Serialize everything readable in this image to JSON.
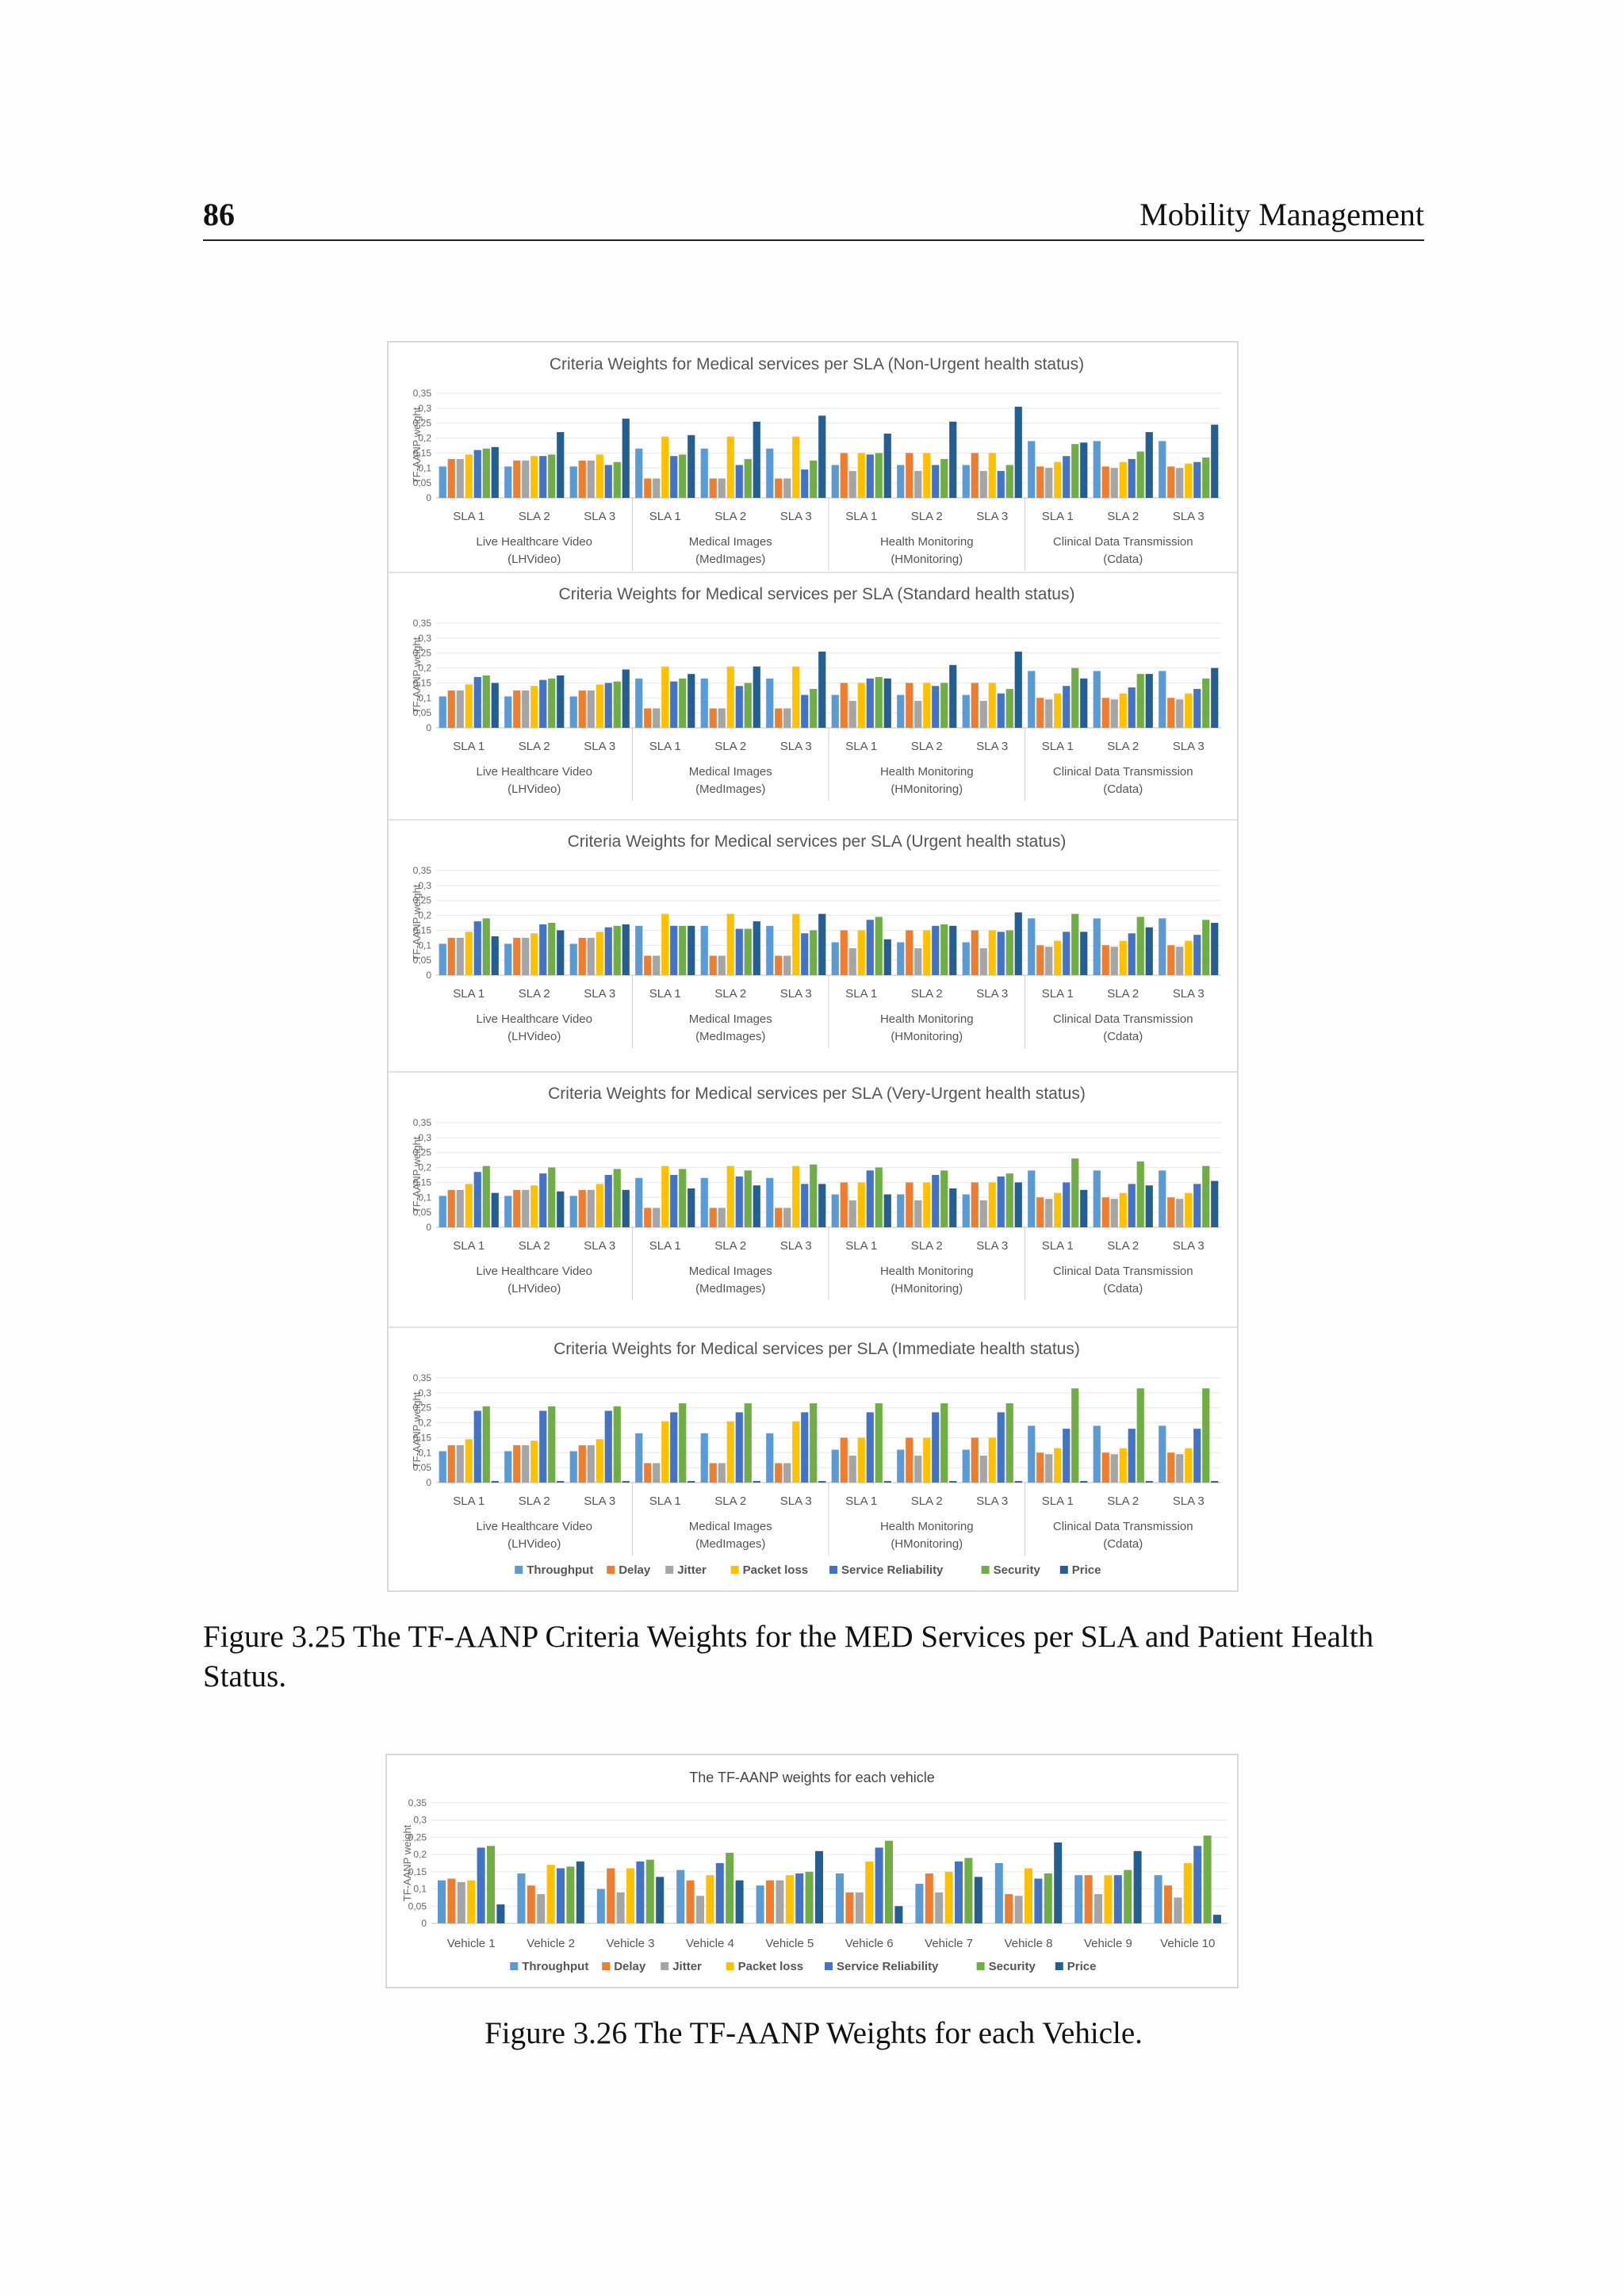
{
  "header": {
    "page_number": "86",
    "running_title": "Mobility Management"
  },
  "series_legend": [
    {
      "name": "Throughput",
      "color": "#5B9BD5"
    },
    {
      "name": "Delay",
      "color": "#ED7D31"
    },
    {
      "name": "Jitter",
      "color": "#A5A5A5"
    },
    {
      "name": "Packet loss",
      "color": "#FFC000"
    },
    {
      "name": "Service Reliability",
      "color": "#4472C4"
    },
    {
      "name": "Security",
      "color": "#70AD47"
    },
    {
      "name": "Price",
      "color": "#255E91"
    }
  ],
  "figure1": {
    "caption": "Figure 3.25 The TF-AANP Criteria Weights for the MED Services per SLA and Patient Health Status.",
    "chart_data": [
      {
        "type": "bar",
        "title": "Criteria Weights for Medical services per SLA (Non-Urgent health status)",
        "ylabel": "TF-AANP  weight",
        "ylim": [
          0,
          0.35
        ],
        "yticks": [
          "0",
          "0,05",
          "0,1",
          "0,15",
          "0,2",
          "0,25",
          "0,3",
          "0,35"
        ],
        "groups": [
          {
            "label": "Live Healthcare Video",
            "sublabel": "(LHVideo)",
            "categories": [
              "SLA 1",
              "SLA 2",
              "SLA 3"
            ]
          },
          {
            "label": "Medical Images",
            "sublabel": "(MedImages)",
            "categories": [
              "SLA 1",
              "SLA 2",
              "SLA 3"
            ]
          },
          {
            "label": "Health Monitoring",
            "sublabel": "(HMonitoring)",
            "categories": [
              "SLA 1",
              "SLA 2",
              "SLA 3"
            ]
          },
          {
            "label": "Clinical Data Transmission",
            "sublabel": "(Cdata)",
            "categories": [
              "SLA 1",
              "SLA 2",
              "SLA 3"
            ]
          }
        ],
        "values": [
          [
            0.105,
            0.13,
            0.13,
            0.145,
            0.16,
            0.165,
            0.17
          ],
          [
            0.105,
            0.125,
            0.125,
            0.14,
            0.14,
            0.145,
            0.22
          ],
          [
            0.105,
            0.125,
            0.125,
            0.145,
            0.11,
            0.12,
            0.265
          ],
          [
            0.165,
            0.065,
            0.065,
            0.205,
            0.14,
            0.145,
            0.21
          ],
          [
            0.165,
            0.065,
            0.065,
            0.205,
            0.11,
            0.13,
            0.255
          ],
          [
            0.165,
            0.065,
            0.065,
            0.205,
            0.095,
            0.125,
            0.275
          ],
          [
            0.11,
            0.15,
            0.09,
            0.15,
            0.145,
            0.15,
            0.215
          ],
          [
            0.11,
            0.15,
            0.09,
            0.15,
            0.11,
            0.13,
            0.255
          ],
          [
            0.11,
            0.15,
            0.09,
            0.15,
            0.09,
            0.11,
            0.305
          ],
          [
            0.19,
            0.105,
            0.1,
            0.12,
            0.14,
            0.18,
            0.185
          ],
          [
            0.19,
            0.105,
            0.1,
            0.12,
            0.13,
            0.155,
            0.22
          ],
          [
            0.19,
            0.105,
            0.1,
            0.115,
            0.12,
            0.135,
            0.245
          ]
        ]
      },
      {
        "type": "bar",
        "title": "Criteria Weights for Medical services per SLA (Standard health status)",
        "ylabel": "TF-AANP  weight",
        "ylim": [
          0,
          0.35
        ],
        "yticks": [
          "0",
          "0,05",
          "0,1",
          "0,15",
          "0,2",
          "0,25",
          "0,3",
          "0,35"
        ],
        "groups": [
          {
            "label": "Live Healthcare Video",
            "sublabel": "(LHVideo)",
            "categories": [
              "SLA 1",
              "SLA 2",
              "SLA 3"
            ]
          },
          {
            "label": "Medical Images",
            "sublabel": "(MedImages)",
            "categories": [
              "SLA 1",
              "SLA 2",
              "SLA 3"
            ]
          },
          {
            "label": "Health Monitoring",
            "sublabel": "(HMonitoring)",
            "categories": [
              "SLA 1",
              "SLA 2",
              "SLA 3"
            ]
          },
          {
            "label": "Clinical Data Transmission",
            "sublabel": "(Cdata)",
            "categories": [
              "SLA 1",
              "SLA 2",
              "SLA 3"
            ]
          }
        ],
        "values": [
          [
            0.105,
            0.125,
            0.125,
            0.145,
            0.17,
            0.175,
            0.15
          ],
          [
            0.105,
            0.125,
            0.125,
            0.14,
            0.16,
            0.165,
            0.175
          ],
          [
            0.105,
            0.125,
            0.125,
            0.145,
            0.15,
            0.155,
            0.195
          ],
          [
            0.165,
            0.065,
            0.065,
            0.205,
            0.155,
            0.165,
            0.18
          ],
          [
            0.165,
            0.065,
            0.065,
            0.205,
            0.14,
            0.15,
            0.205
          ],
          [
            0.165,
            0.065,
            0.065,
            0.205,
            0.11,
            0.13,
            0.255
          ],
          [
            0.11,
            0.15,
            0.09,
            0.15,
            0.165,
            0.17,
            0.165
          ],
          [
            0.11,
            0.15,
            0.09,
            0.15,
            0.14,
            0.15,
            0.21
          ],
          [
            0.11,
            0.15,
            0.09,
            0.15,
            0.115,
            0.13,
            0.255
          ],
          [
            0.19,
            0.1,
            0.095,
            0.115,
            0.14,
            0.2,
            0.165
          ],
          [
            0.19,
            0.1,
            0.095,
            0.115,
            0.135,
            0.18,
            0.18
          ],
          [
            0.19,
            0.1,
            0.095,
            0.115,
            0.13,
            0.165,
            0.2
          ]
        ]
      },
      {
        "type": "bar",
        "title": "Criteria Weights for Medical services per SLA (Urgent health status)",
        "ylabel": "TF-AANP  weight",
        "ylim": [
          0,
          0.35
        ],
        "yticks": [
          "0",
          "0,05",
          "0,1",
          "0,15",
          "0,2",
          "0,25",
          "0,3",
          "0,35"
        ],
        "groups": [
          {
            "label": "Live Healthcare Video",
            "sublabel": "(LHVideo)",
            "categories": [
              "SLA 1",
              "SLA 2",
              "SLA 3"
            ]
          },
          {
            "label": "Medical Images",
            "sublabel": "(MedImages)",
            "categories": [
              "SLA 1",
              "SLA 2",
              "SLA 3"
            ]
          },
          {
            "label": "Health Monitoring",
            "sublabel": "(HMonitoring)",
            "categories": [
              "SLA 1",
              "SLA 2",
              "SLA 3"
            ]
          },
          {
            "label": "Clinical Data Transmission",
            "sublabel": "(Cdata)",
            "categories": [
              "SLA 1",
              "SLA 2",
              "SLA 3"
            ]
          }
        ],
        "values": [
          [
            0.105,
            0.125,
            0.125,
            0.145,
            0.18,
            0.19,
            0.13
          ],
          [
            0.105,
            0.125,
            0.125,
            0.14,
            0.17,
            0.175,
            0.15
          ],
          [
            0.105,
            0.125,
            0.125,
            0.145,
            0.16,
            0.165,
            0.17
          ],
          [
            0.165,
            0.065,
            0.065,
            0.205,
            0.165,
            0.165,
            0.165
          ],
          [
            0.165,
            0.065,
            0.065,
            0.205,
            0.155,
            0.155,
            0.18
          ],
          [
            0.165,
            0.065,
            0.065,
            0.205,
            0.14,
            0.15,
            0.205
          ],
          [
            0.11,
            0.15,
            0.09,
            0.15,
            0.185,
            0.195,
            0.12
          ],
          [
            0.11,
            0.15,
            0.09,
            0.15,
            0.165,
            0.17,
            0.165
          ],
          [
            0.11,
            0.15,
            0.09,
            0.15,
            0.145,
            0.15,
            0.21
          ],
          [
            0.19,
            0.1,
            0.095,
            0.115,
            0.145,
            0.205,
            0.145
          ],
          [
            0.19,
            0.1,
            0.095,
            0.115,
            0.14,
            0.195,
            0.16
          ],
          [
            0.19,
            0.1,
            0.095,
            0.115,
            0.135,
            0.185,
            0.175
          ]
        ]
      },
      {
        "type": "bar",
        "title": "Criteria Weights for Medical services per SLA (Very-Urgent health status)",
        "ylabel": "TF-AANP  weight",
        "ylim": [
          0,
          0.35
        ],
        "yticks": [
          "0",
          "0,05",
          "0,1",
          "0,15",
          "0,2",
          "0,25",
          "0,3",
          "0,35"
        ],
        "groups": [
          {
            "label": "Live Healthcare Video",
            "sublabel": "(LHVideo)",
            "categories": [
              "SLA 1",
              "SLA 2",
              "SLA 3"
            ]
          },
          {
            "label": "Medical Images",
            "sublabel": "(MedImages)",
            "categories": [
              "SLA 1",
              "SLA 2",
              "SLA 3"
            ]
          },
          {
            "label": "Health Monitoring",
            "sublabel": "(HMonitoring)",
            "categories": [
              "SLA 1",
              "SLA 2",
              "SLA 3"
            ]
          },
          {
            "label": "Clinical Data Transmission",
            "sublabel": "(Cdata)",
            "categories": [
              "SLA 1",
              "SLA 2",
              "SLA 3"
            ]
          }
        ],
        "values": [
          [
            0.105,
            0.125,
            0.125,
            0.145,
            0.185,
            0.205,
            0.115
          ],
          [
            0.105,
            0.125,
            0.125,
            0.14,
            0.18,
            0.2,
            0.12
          ],
          [
            0.105,
            0.125,
            0.125,
            0.145,
            0.175,
            0.195,
            0.125
          ],
          [
            0.165,
            0.065,
            0.065,
            0.205,
            0.175,
            0.195,
            0.13
          ],
          [
            0.165,
            0.065,
            0.065,
            0.205,
            0.17,
            0.19,
            0.14
          ],
          [
            0.165,
            0.065,
            0.065,
            0.205,
            0.145,
            0.21,
            0.145
          ],
          [
            0.11,
            0.15,
            0.09,
            0.15,
            0.19,
            0.2,
            0.11
          ],
          [
            0.11,
            0.15,
            0.09,
            0.15,
            0.175,
            0.19,
            0.13
          ],
          [
            0.11,
            0.15,
            0.09,
            0.15,
            0.17,
            0.18,
            0.15
          ],
          [
            0.19,
            0.1,
            0.095,
            0.115,
            0.15,
            0.23,
            0.125
          ],
          [
            0.19,
            0.1,
            0.095,
            0.115,
            0.145,
            0.22,
            0.14
          ],
          [
            0.19,
            0.1,
            0.095,
            0.115,
            0.145,
            0.205,
            0.155
          ]
        ]
      },
      {
        "type": "bar",
        "title": "Criteria Weights for Medical services per SLA (Immediate health status)",
        "ylabel": "TF-AANP  weight",
        "ylim": [
          0,
          0.35
        ],
        "yticks": [
          "0",
          "0,05",
          "0,1",
          "0,15",
          "0,2",
          "0,25",
          "0,3",
          "0,35"
        ],
        "groups": [
          {
            "label": "Live Healthcare Video",
            "sublabel": "(LHVideo)",
            "categories": [
              "SLA 1",
              "SLA 2",
              "SLA 3"
            ]
          },
          {
            "label": "Medical Images",
            "sublabel": "(MedImages)",
            "categories": [
              "SLA 1",
              "SLA 2",
              "SLA 3"
            ]
          },
          {
            "label": "Health Monitoring",
            "sublabel": "(HMonitoring)",
            "categories": [
              "SLA 1",
              "SLA 2",
              "SLA 3"
            ]
          },
          {
            "label": "Clinical Data Transmission",
            "sublabel": "(Cdata)",
            "categories": [
              "SLA 1",
              "SLA 2",
              "SLA 3"
            ]
          }
        ],
        "values": [
          [
            0.105,
            0.125,
            0.125,
            0.145,
            0.24,
            0.255,
            0.005
          ],
          [
            0.105,
            0.125,
            0.125,
            0.14,
            0.24,
            0.255,
            0.005
          ],
          [
            0.105,
            0.125,
            0.125,
            0.145,
            0.24,
            0.255,
            0.005
          ],
          [
            0.165,
            0.065,
            0.065,
            0.205,
            0.235,
            0.265,
            0.005
          ],
          [
            0.165,
            0.065,
            0.065,
            0.205,
            0.235,
            0.265,
            0.005
          ],
          [
            0.165,
            0.065,
            0.065,
            0.205,
            0.235,
            0.265,
            0.005
          ],
          [
            0.11,
            0.15,
            0.09,
            0.15,
            0.235,
            0.265,
            0.005
          ],
          [
            0.11,
            0.15,
            0.09,
            0.15,
            0.235,
            0.265,
            0.005
          ],
          [
            0.11,
            0.15,
            0.09,
            0.15,
            0.235,
            0.265,
            0.005
          ],
          [
            0.19,
            0.1,
            0.095,
            0.115,
            0.18,
            0.315,
            0.005
          ],
          [
            0.19,
            0.1,
            0.095,
            0.115,
            0.18,
            0.315,
            0.005
          ],
          [
            0.19,
            0.1,
            0.095,
            0.115,
            0.18,
            0.315,
            0.005
          ]
        ]
      }
    ]
  },
  "figure2": {
    "caption": "Figure 3.26 The TF-AANP Weights for each Vehicle.",
    "chart_data": {
      "type": "bar",
      "title": "The TF-AANP weights for each vehicle",
      "ylabel": "TF-AANP weight",
      "ylim": [
        0,
        0.35
      ],
      "yticks": [
        "0",
        "0,05",
        "0,1",
        "0,15",
        "0,2",
        "0,25",
        "0,3",
        "0,35"
      ],
      "categories": [
        "Vehicle 1",
        "Vehicle 2",
        "Vehicle 3",
        "Vehicle 4",
        "Vehicle 5",
        "Vehicle 6",
        "Vehicle 7",
        "Vehicle 8",
        "Vehicle 9",
        "Vehicle 10"
      ],
      "values": [
        [
          0.125,
          0.13,
          0.12,
          0.125,
          0.22,
          0.225,
          0.055
        ],
        [
          0.145,
          0.11,
          0.085,
          0.17,
          0.16,
          0.165,
          0.18
        ],
        [
          0.1,
          0.16,
          0.09,
          0.16,
          0.18,
          0.185,
          0.135
        ],
        [
          0.155,
          0.125,
          0.08,
          0.14,
          0.175,
          0.205,
          0.125
        ],
        [
          0.11,
          0.125,
          0.125,
          0.14,
          0.145,
          0.15,
          0.21
        ],
        [
          0.145,
          0.09,
          0.09,
          0.18,
          0.22,
          0.24,
          0.05
        ],
        [
          0.115,
          0.145,
          0.09,
          0.15,
          0.18,
          0.19,
          0.135
        ],
        [
          0.175,
          0.085,
          0.08,
          0.16,
          0.13,
          0.145,
          0.235
        ],
        [
          0.14,
          0.14,
          0.085,
          0.14,
          0.14,
          0.155,
          0.21
        ],
        [
          0.14,
          0.11,
          0.075,
          0.175,
          0.225,
          0.255,
          0.025
        ]
      ]
    }
  }
}
